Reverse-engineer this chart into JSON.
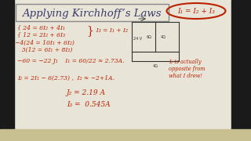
{
  "background_color": "#e8e4d8",
  "left_bar_color": "#1a1a1a",
  "right_bar_color": "#1a1a1a",
  "title": "Applying Kirchhoff’s Laws",
  "title_color": "#3a3a6a",
  "title_fontsize": 9.5,
  "red": "#bb2200",
  "dark": "#333333",
  "ellipse_label": "I₁ = I₂ + I₃",
  "line1a": "{ 24 = 6I₂ + 4I₁",
  "line1b": "{ 12 = 2I₂ + 6I₃",
  "line1c": "  I₃ = I₁ + I₂",
  "line2a": "−4(24 = 10I₁ + 6I₂)",
  "line2b": "  3(12 = 6I₁ + 8I₂)",
  "line3": "−60 = −22 J₁    I₁ = ⁠⁠⁠60⁠/⁠22 ≈ 2.73A.",
  "line4": "I₂ = 2I₁ − 6(2.73) ,  I₂ ≈ −2+1A.",
  "line5": "J₂ = 2.19 A",
  "line6": "I₃ =  0.545A",
  "sidenote": "I₂ is actually\nopposite from\nwhat I drew!"
}
